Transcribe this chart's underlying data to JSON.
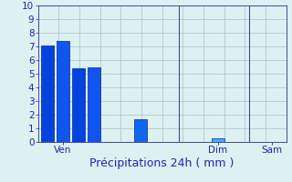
{
  "bar_values": [
    7.1,
    7.4,
    5.4,
    5.5,
    1.7,
    0.3
  ],
  "bar_colors": [
    "#0044dd",
    "#1155ee",
    "#0044dd",
    "#1155ee",
    "#1166ee",
    "#44aaff"
  ],
  "bar_positions": [
    0,
    1,
    2,
    3,
    6,
    11
  ],
  "bar_width": 0.8,
  "xlim": [
    -0.6,
    15.4
  ],
  "xtick_positions": [
    1.0,
    11.0,
    14.5
  ],
  "xtick_labels": [
    "Ven",
    "Dim",
    "Sam"
  ],
  "xlabel": "Précipitations 24h ( mm )",
  "ylim": [
    0,
    10
  ],
  "yticks": [
    0,
    1,
    2,
    3,
    4,
    5,
    6,
    7,
    8,
    9,
    10
  ],
  "background_color": "#ddf2f0",
  "grid_color": "#b0c8c8",
  "bar_edge_color": "#0022aa",
  "xlabel_fontsize": 9,
  "tick_fontsize": 7.5,
  "tick_color": "#2222bb",
  "axis_color": "#4444aa",
  "vline_positions": [
    8.5,
    13.0
  ]
}
